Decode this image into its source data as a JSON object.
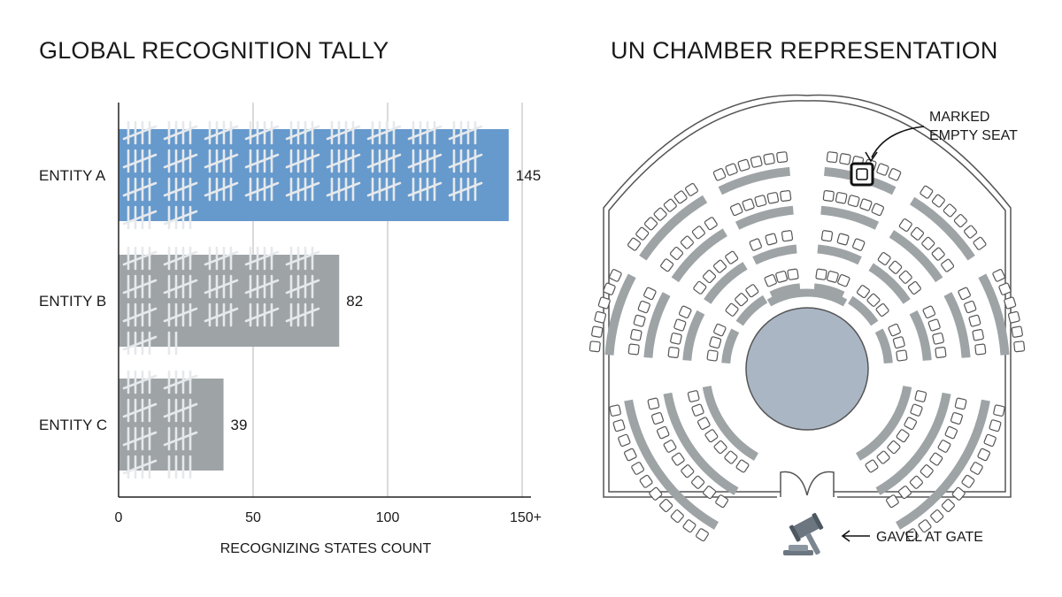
{
  "left_panel": {
    "title": "GLOBAL RECOGNITION TALLY"
  },
  "right_panel": {
    "title": "UN CHAMBER REPRESENTATION",
    "annotations": {
      "marked_seat": [
        "MARKED",
        "EMPTY SEAT"
      ],
      "gavel": "GAVEL AT GATE"
    }
  },
  "chart_data": {
    "type": "bar",
    "orientation": "horizontal",
    "title": "GLOBAL RECOGNITION TALLY",
    "categories": [
      "ENTITY A",
      "ENTITY B",
      "ENTITY C"
    ],
    "values": [
      145,
      82,
      39
    ],
    "value_labels": [
      "145",
      "82",
      "39"
    ],
    "xlabel": "RECOGNIZING STATES COUNT",
    "ylabel": "",
    "xlim": [
      0,
      150
    ],
    "xticks": [
      0,
      50,
      100,
      150
    ],
    "xtick_labels": [
      "0",
      "50",
      "100",
      "150+"
    ],
    "grid": true,
    "bar_fill": "tally marks",
    "colors": {
      "highlight": "#6699cc",
      "default": "#9ea3a6",
      "tally": "#e6e9ec"
    }
  }
}
